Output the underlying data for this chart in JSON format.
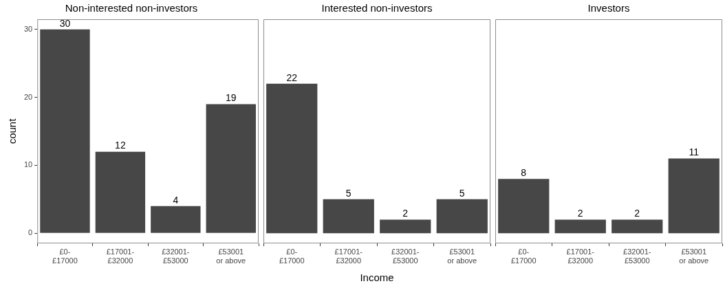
{
  "chart_data": [
    {
      "type": "bar",
      "title": "Non-interested non-investors",
      "ylabel": "count",
      "categories": [
        "£0- £17000",
        "£17001- £32000",
        "£32001- £53000",
        "£53001 or above"
      ],
      "values": [
        30,
        12,
        4,
        19
      ],
      "color": "#474747",
      "ylim": [
        -1.5,
        31.5
      ],
      "yticks": [
        0,
        10,
        20,
        30
      ],
      "grid": false,
      "data_labels": true
    },
    {
      "type": "bar",
      "title": "Interested non-investors",
      "xlabel": "Income",
      "categories": [
        "£0- £17000",
        "£17001- £32000",
        "£32001- £53000",
        "£53001 or above"
      ],
      "values": [
        22,
        5,
        2,
        5
      ],
      "color": "#474747",
      "ylim": [
        -1.5,
        31.5
      ],
      "yticks": [
        0,
        10,
        20,
        30
      ],
      "grid": false,
      "data_labels": true,
      "tick_labels": "x"
    },
    {
      "type": "bar",
      "title": "Investors",
      "categories": [
        "£0- £17000",
        "£17001- £32000",
        "£32001- £53000",
        "£53001 or above"
      ],
      "values": [
        8,
        2,
        2,
        11
      ],
      "color": "#474747",
      "ylim": [
        -1.5,
        31.5
      ],
      "yticks": [
        0,
        10,
        20,
        30
      ],
      "grid": false,
      "data_labels": true,
      "tick_labels": "x"
    }
  ]
}
